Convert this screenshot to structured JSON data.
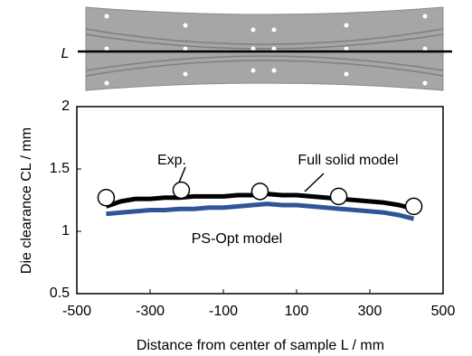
{
  "diagram": {
    "label": "L"
  },
  "chart_data": {
    "type": "line",
    "xlabel": "Distance from center of sample L / mm",
    "ylabel": "Die clearance CL / mm",
    "xlim": [
      -500,
      500
    ],
    "xticks": [
      -500,
      -300,
      -100,
      100,
      300,
      500
    ],
    "ylim": [
      0.5,
      2
    ],
    "yticks": [
      0.5,
      1,
      1.5,
      2
    ],
    "series": [
      {
        "name": "Exp.",
        "mode": "markers",
        "color": "#000000",
        "x": [
          -420,
          -215,
          0,
          215,
          420
        ],
        "values": [
          1.27,
          1.33,
          1.32,
          1.28,
          1.2
        ]
      },
      {
        "name": "Full solid model",
        "mode": "line",
        "color": "#000000",
        "x": [
          -420,
          -380,
          -340,
          -300,
          -260,
          -220,
          -180,
          -140,
          -100,
          -60,
          -20,
          20,
          60,
          100,
          140,
          180,
          220,
          260,
          300,
          340,
          380,
          420
        ],
        "values": [
          1.2,
          1.24,
          1.26,
          1.26,
          1.27,
          1.27,
          1.28,
          1.28,
          1.28,
          1.29,
          1.29,
          1.3,
          1.29,
          1.29,
          1.28,
          1.27,
          1.26,
          1.25,
          1.24,
          1.23,
          1.21,
          1.18
        ]
      },
      {
        "name": "PS-Opt model",
        "mode": "line",
        "color": "#2f5597",
        "x": [
          -420,
          -380,
          -340,
          -300,
          -260,
          -220,
          -180,
          -140,
          -100,
          -60,
          -20,
          20,
          60,
          100,
          140,
          180,
          220,
          260,
          300,
          340,
          380,
          420
        ],
        "values": [
          1.14,
          1.15,
          1.16,
          1.17,
          1.17,
          1.18,
          1.18,
          1.19,
          1.19,
          1.2,
          1.21,
          1.22,
          1.21,
          1.21,
          1.2,
          1.19,
          1.18,
          1.17,
          1.16,
          1.15,
          1.13,
          1.1
        ]
      }
    ]
  }
}
